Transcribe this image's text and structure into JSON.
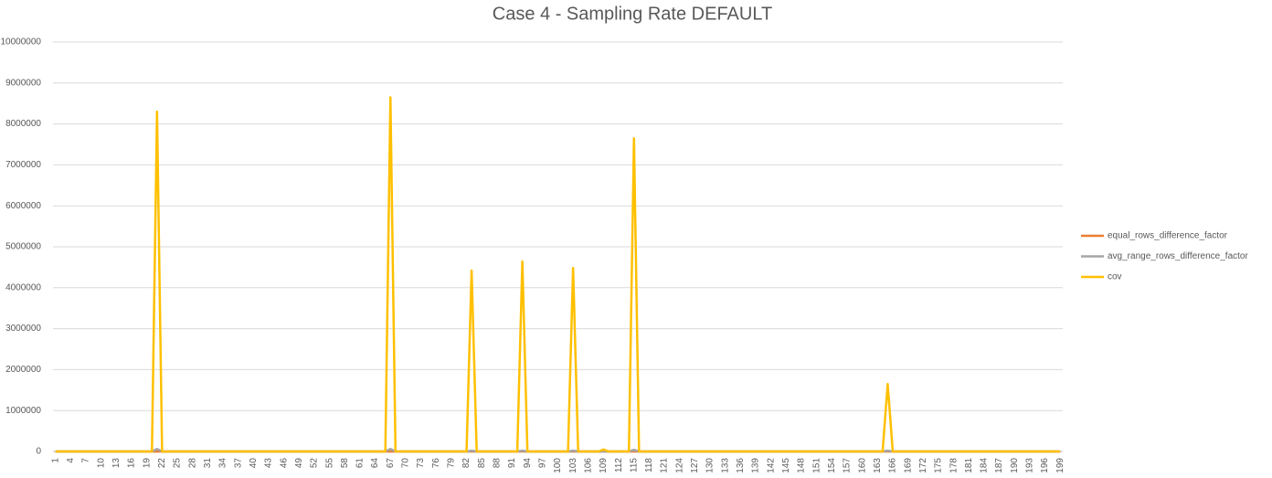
{
  "chart_data": {
    "type": "line",
    "title": "Case 4 - Sampling Rate DEFAULT",
    "categories": [
      1,
      null,
      null,
      4,
      null,
      null,
      7,
      null,
      null,
      10,
      null,
      null,
      13,
      null,
      null,
      16,
      null,
      null,
      19,
      null,
      null,
      22,
      null,
      null,
      25,
      null,
      null,
      28,
      null,
      null,
      31,
      null,
      null,
      34,
      null,
      null,
      37,
      null,
      null,
      40,
      null,
      null,
      43,
      null,
      null,
      46,
      null,
      null,
      49,
      null,
      null,
      52,
      null,
      null,
      55,
      null,
      null,
      58,
      null,
      null,
      61,
      null,
      null,
      64,
      null,
      null,
      67,
      null,
      null,
      70,
      null,
      null,
      73,
      null,
      null,
      76,
      null,
      null,
      79,
      null,
      null,
      82,
      null,
      null,
      85,
      null,
      null,
      88,
      null,
      null,
      91,
      null,
      null,
      94,
      null,
      null,
      97,
      null,
      null,
      100,
      null,
      null,
      103,
      null,
      null,
      106,
      null,
      null,
      109,
      null,
      null,
      112,
      null,
      null,
      115,
      null,
      null,
      118,
      null,
      null,
      121,
      null,
      null,
      124,
      null,
      null,
      127,
      null,
      null,
      130,
      null,
      null,
      133,
      null,
      null,
      136,
      null,
      null,
      139,
      null,
      null,
      142,
      null,
      null,
      145,
      null,
      null,
      148,
      null,
      null,
      151,
      null,
      null,
      154,
      null,
      null,
      157,
      null,
      null,
      160,
      null,
      null,
      163,
      null,
      null,
      166,
      null,
      null,
      169,
      null,
      null,
      172,
      null,
      null,
      175,
      null,
      null,
      178,
      null,
      null,
      181,
      null,
      null,
      184,
      null,
      null,
      187,
      null,
      null,
      190,
      null,
      null,
      193,
      null,
      null,
      196,
      null,
      null,
      199
    ],
    "series": [
      {
        "name": "equal_rows_difference_factor",
        "color": "#ED7D31",
        "values": [
          0,
          0,
          0,
          0,
          0,
          0,
          0,
          0,
          0,
          0,
          0,
          0,
          0,
          0,
          0,
          0,
          0,
          0,
          0,
          0,
          0,
          0,
          0,
          0,
          0,
          0,
          0,
          0,
          0,
          0,
          0,
          0,
          0,
          0,
          0,
          0,
          0,
          0,
          0,
          0,
          0,
          0,
          0,
          0,
          0,
          0,
          0,
          0,
          0,
          0,
          0,
          0,
          0,
          0,
          0,
          0,
          0,
          0,
          0,
          0,
          0,
          0,
          0,
          0,
          0,
          0,
          0,
          0,
          0,
          0,
          0,
          0,
          0,
          0,
          0,
          0,
          0,
          0,
          0,
          0,
          0,
          0,
          0,
          0,
          0,
          0,
          0,
          0,
          0,
          0,
          0,
          0,
          0,
          0,
          0,
          0,
          0,
          0,
          0,
          0,
          0,
          0,
          0,
          0,
          0,
          0,
          0,
          0,
          0,
          0,
          0,
          0,
          0,
          0,
          0,
          0,
          0,
          0,
          0,
          0,
          0,
          0,
          0,
          0,
          0,
          0,
          0,
          0,
          0,
          0,
          0,
          0,
          0,
          0,
          0,
          0,
          0,
          0,
          0,
          0,
          0,
          0,
          0,
          0,
          0,
          0,
          0,
          0,
          0,
          0,
          0,
          0,
          0,
          0,
          0,
          0,
          0,
          0,
          0,
          0,
          0,
          0,
          0,
          0,
          0,
          0,
          0,
          0,
          0,
          0,
          0,
          0,
          0,
          0,
          0,
          0,
          0,
          0,
          0,
          0,
          0,
          0,
          0,
          0,
          0,
          0,
          0,
          0,
          0,
          0,
          0,
          0,
          0,
          0,
          0,
          0,
          0,
          0,
          0
        ]
      },
      {
        "name": "avg_range_rows_difference_factor",
        "color": "#A5A5A5",
        "values": [
          0,
          0,
          0,
          0,
          0,
          0,
          0,
          0,
          0,
          0,
          0,
          0,
          0,
          0,
          0,
          0,
          0,
          0,
          0,
          0,
          60000,
          0,
          0,
          0,
          0,
          0,
          0,
          0,
          0,
          0,
          0,
          0,
          0,
          0,
          0,
          0,
          0,
          0,
          0,
          0,
          0,
          0,
          0,
          0,
          0,
          0,
          0,
          0,
          0,
          0,
          0,
          0,
          0,
          0,
          0,
          0,
          0,
          0,
          0,
          0,
          0,
          0,
          0,
          0,
          0,
          0,
          60000,
          0,
          0,
          0,
          0,
          0,
          0,
          0,
          0,
          0,
          0,
          0,
          0,
          0,
          0,
          0,
          20000,
          0,
          0,
          0,
          0,
          0,
          0,
          0,
          0,
          0,
          20000,
          0,
          0,
          0,
          0,
          0,
          0,
          0,
          0,
          0,
          20000,
          0,
          0,
          0,
          0,
          0,
          0,
          0,
          0,
          0,
          0,
          0,
          40000,
          0,
          0,
          0,
          0,
          0,
          0,
          0,
          0,
          0,
          0,
          0,
          0,
          0,
          0,
          0,
          0,
          0,
          0,
          0,
          0,
          0,
          0,
          0,
          0,
          0,
          0,
          0,
          0,
          0,
          0,
          0,
          0,
          0,
          0,
          0,
          0,
          0,
          0,
          0,
          0,
          0,
          0,
          0,
          0,
          0,
          0,
          0,
          0,
          0,
          20000,
          0,
          0,
          0,
          0,
          0,
          0,
          0,
          0,
          0,
          0,
          0,
          0,
          0,
          0,
          0,
          0,
          0,
          0,
          0,
          0,
          0,
          0,
          0,
          0,
          0,
          0,
          0,
          0,
          0,
          0,
          0,
          0,
          0,
          0
        ]
      },
      {
        "name": "cov",
        "color": "#FFC000",
        "values": [
          0,
          0,
          0,
          0,
          0,
          0,
          0,
          0,
          0,
          0,
          0,
          0,
          0,
          0,
          0,
          0,
          0,
          0,
          0,
          0,
          8300000,
          0,
          0,
          0,
          0,
          0,
          0,
          0,
          0,
          0,
          0,
          0,
          0,
          0,
          0,
          0,
          0,
          0,
          0,
          0,
          0,
          0,
          0,
          0,
          0,
          0,
          0,
          0,
          0,
          0,
          0,
          0,
          0,
          0,
          0,
          0,
          0,
          0,
          0,
          0,
          0,
          0,
          0,
          0,
          0,
          0,
          8650000,
          0,
          0,
          0,
          0,
          0,
          0,
          0,
          0,
          0,
          0,
          0,
          0,
          0,
          0,
          0,
          4420000,
          0,
          0,
          0,
          0,
          0,
          0,
          0,
          0,
          0,
          4640000,
          0,
          0,
          0,
          0,
          0,
          0,
          0,
          0,
          0,
          4480000,
          0,
          0,
          0,
          0,
          0,
          50000,
          0,
          0,
          0,
          0,
          0,
          7650000,
          0,
          0,
          0,
          0,
          0,
          0,
          0,
          0,
          0,
          0,
          0,
          0,
          0,
          0,
          0,
          0,
          0,
          0,
          0,
          0,
          0,
          0,
          0,
          0,
          0,
          0,
          0,
          0,
          0,
          0,
          0,
          0,
          0,
          0,
          0,
          0,
          0,
          0,
          0,
          0,
          0,
          0,
          0,
          0,
          0,
          0,
          0,
          0,
          0,
          1650000,
          0,
          0,
          0,
          0,
          0,
          0,
          0,
          0,
          0,
          0,
          0,
          0,
          0,
          0,
          0,
          0,
          0,
          0,
          0,
          0,
          0,
          0,
          0,
          0,
          0,
          0,
          0,
          0,
          0,
          0,
          0,
          0,
          0,
          0
        ]
      }
    ],
    "ylim": [
      0,
      10000000
    ],
    "yticks": [
      0,
      1000000,
      2000000,
      3000000,
      4000000,
      5000000,
      6000000,
      7000000,
      8000000,
      9000000,
      10000000
    ],
    "grid": true,
    "legend": "right"
  }
}
